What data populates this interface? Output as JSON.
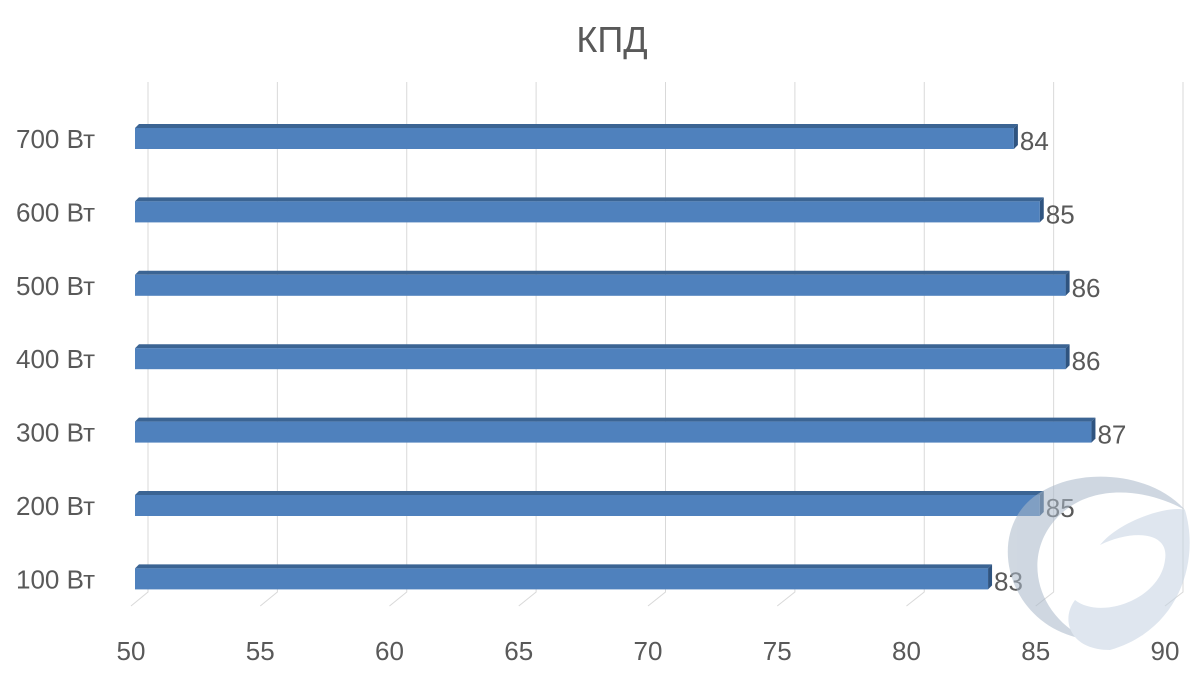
{
  "chart_data": {
    "type": "bar",
    "orientation": "horizontal",
    "style": "3d",
    "title": "КПД",
    "categories": [
      "700 Вт",
      "600 Вт",
      "500 Вт",
      "400 Вт",
      "300 Вт",
      "200 Вт",
      "100 Вт"
    ],
    "values": [
      84,
      85,
      86,
      86,
      87,
      85,
      83
    ],
    "xlim": [
      50,
      90
    ],
    "xticks": [
      50,
      55,
      60,
      65,
      70,
      75,
      80,
      85,
      90
    ],
    "xlabel": "",
    "ylabel": "",
    "grid": true,
    "data_labels": true,
    "colors": {
      "bar_front": "#4f81bd",
      "bar_top": "#3b6493",
      "bar_side": "#2f5480",
      "grid": "#d9d9d9",
      "text": "#595959"
    }
  }
}
